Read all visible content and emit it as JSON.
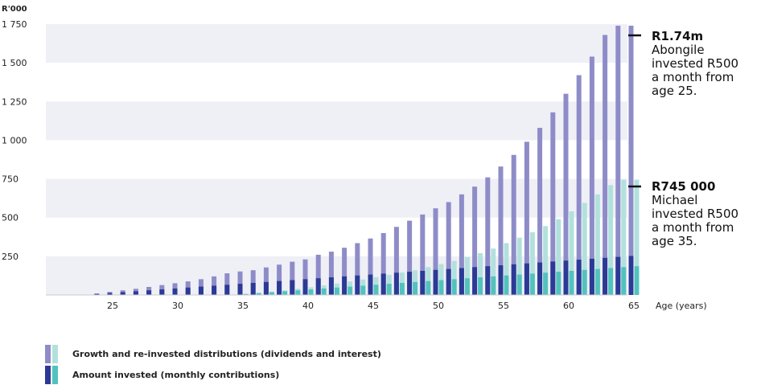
{
  "chart_data": {
    "type": "bar",
    "unit_label": "R'000",
    "xlabel": "Age (years)",
    "ylim": [
      0,
      1750
    ],
    "y_ticks": [
      {
        "value": 250,
        "label": "250"
      },
      {
        "value": 500,
        "label": "500"
      },
      {
        "value": 750,
        "label": "750"
      },
      {
        "value": 1000,
        "label": "1 000"
      },
      {
        "value": 1250,
        "label": "1 250"
      },
      {
        "value": 1500,
        "label": "1 500"
      },
      {
        "value": 1750,
        "label": "1 750"
      }
    ],
    "x_ticks": [
      25,
      30,
      35,
      40,
      45,
      50,
      55,
      60,
      65
    ],
    "ages": [
      24,
      25,
      26,
      27,
      28,
      29,
      30,
      31,
      32,
      33,
      34,
      35,
      36,
      37,
      38,
      39,
      40,
      41,
      42,
      43,
      44,
      45,
      46,
      47,
      48,
      49,
      50,
      51,
      52,
      53,
      54,
      55,
      56,
      57,
      58,
      59,
      60,
      61,
      62,
      63,
      64,
      65
    ],
    "series": [
      {
        "investor": "Abongile",
        "amount_invested": [
          6,
          12,
          18,
          24,
          30,
          36,
          42,
          48,
          54,
          60,
          66,
          72,
          78,
          84,
          90,
          96,
          102,
          108,
          114,
          120,
          126,
          132,
          138,
          144,
          150,
          156,
          162,
          168,
          174,
          180,
          186,
          192,
          198,
          204,
          210,
          216,
          222,
          228,
          234,
          240,
          246,
          252
        ],
        "total_value": [
          10,
          20,
          30,
          40,
          52,
          64,
          76,
          88,
          102,
          120,
          140,
          152,
          160,
          178,
          196,
          215,
          230,
          260,
          280,
          305,
          335,
          365,
          400,
          440,
          480,
          520,
          560,
          600,
          650,
          700,
          760,
          830,
          905,
          990,
          1080,
          1180,
          1300,
          1420,
          1540,
          1680,
          1740,
          1740
        ]
      },
      {
        "investor": "Michael",
        "amount_invested": [
          0,
          0,
          0,
          0,
          0,
          0,
          0,
          0,
          0,
          0,
          0,
          6,
          12,
          18,
          24,
          30,
          36,
          42,
          48,
          54,
          60,
          66,
          72,
          78,
          84,
          90,
          96,
          102,
          108,
          114,
          120,
          126,
          132,
          138,
          144,
          150,
          156,
          162,
          168,
          174,
          180,
          186
        ],
        "total_value": [
          0,
          0,
          0,
          0,
          0,
          0,
          0,
          0,
          0,
          0,
          0,
          8,
          14,
          22,
          30,
          40,
          50,
          62,
          74,
          88,
          100,
          115,
          130,
          145,
          160,
          180,
          200,
          220,
          245,
          270,
          300,
          335,
          370,
          405,
          445,
          490,
          540,
          595,
          650,
          710,
          745,
          745
        ]
      }
    ],
    "annotations": [
      {
        "amount": "R1.74m",
        "text": "Abongile\ninvested R500\na month from\nage 25.",
        "value": 1740
      },
      {
        "amount": "R745 000",
        "text": "Michael\ninvested R500\na month from\nage 35.",
        "value": 745
      }
    ],
    "legend": [
      {
        "label": "Growth and re-invested distributions (dividends and interest)",
        "colors": [
          "#8e8cc8",
          "#b2e1dd"
        ]
      },
      {
        "label": "Amount invested (monthly contributions)",
        "colors": [
          "#2b3a95",
          "#52c2bd"
        ]
      }
    ],
    "colors": {
      "abongile_growth": "#8e8cc8",
      "abongile_invested": "#2b3a95",
      "michael_growth": "#b2e1dd",
      "michael_invested": "#52c2bd",
      "band": "#efeff6"
    }
  }
}
